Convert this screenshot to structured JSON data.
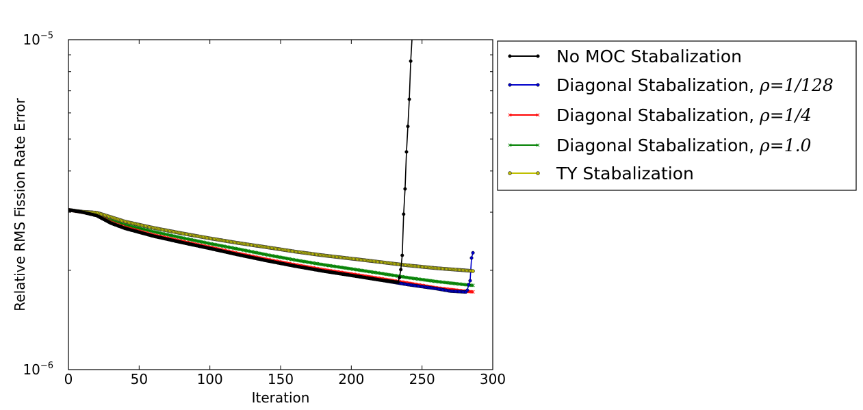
{
  "chart_data": {
    "type": "line",
    "title": "",
    "xlabel": "Iteration",
    "ylabel": "Relative RMS Fission Rate Error",
    "xlim": [
      0,
      300
    ],
    "ylim": [
      1e-06,
      1e-05
    ],
    "y_scale": "log",
    "grid": false,
    "legend_position": "outside-right-top",
    "x_ticks": [
      0,
      50,
      100,
      150,
      200,
      250,
      300
    ],
    "x_tick_labels": [
      "0",
      "50",
      "100",
      "150",
      "200",
      "250",
      "300"
    ],
    "y_tick_labels": [
      {
        "value": 1e-06,
        "base": "10",
        "exp": "−6"
      },
      {
        "value": 1e-05,
        "base": "10",
        "exp": "−5"
      }
    ],
    "series": [
      {
        "name": "No MOC Stabalization",
        "name_text": "No MOC Stabalization",
        "name_math": "",
        "color": "#000000",
        "marker": "dot",
        "x": [
          0,
          10,
          20,
          30,
          40,
          60,
          80,
          100,
          120,
          140,
          160,
          180,
          200,
          220,
          233,
          234,
          235,
          236,
          237,
          238,
          239,
          240,
          241,
          242,
          243
        ],
        "y": [
          3.05e-06,
          3e-06,
          2.93e-06,
          2.78e-06,
          2.68e-06,
          2.54e-06,
          2.43e-06,
          2.33e-06,
          2.23e-06,
          2.14e-06,
          2.06e-06,
          1.99e-06,
          1.93e-06,
          1.87e-06,
          1.84e-06,
          1.9e-06,
          2.01e-06,
          2.22e-06,
          2.96e-06,
          3.53e-06,
          4.57e-06,
          5.46e-06,
          6.6e-06,
          8.61e-06,
          1.02e-05
        ]
      },
      {
        "name": "Diagonal Stabalization, ρ=1/128",
        "name_text": "Diagonal Stabalization, ",
        "name_math": "ρ=1/128",
        "color": "#0000cc",
        "marker": "dot",
        "x": [
          0,
          10,
          20,
          30,
          40,
          60,
          80,
          100,
          120,
          140,
          160,
          180,
          200,
          220,
          240,
          260,
          270,
          280,
          281,
          282,
          283,
          284,
          285,
          286
        ],
        "y": [
          3.05e-06,
          3e-06,
          2.93e-06,
          2.78e-06,
          2.68e-06,
          2.54e-06,
          2.43e-06,
          2.33e-06,
          2.23e-06,
          2.14e-06,
          2.06e-06,
          1.99e-06,
          1.93e-06,
          1.87e-06,
          1.81e-06,
          1.76e-06,
          1.73e-06,
          1.72e-06,
          1.72e-06,
          1.74e-06,
          1.81e-06,
          1.86e-06,
          2.18e-06,
          2.26e-06
        ]
      },
      {
        "name": "Diagonal Stabalization, ρ=1/4",
        "name_text": "Diagonal Stabalization, ",
        "name_math": "ρ=1/4",
        "color": "#ff0000",
        "marker": "x",
        "x": [
          0,
          10,
          20,
          30,
          40,
          60,
          80,
          100,
          120,
          140,
          160,
          180,
          200,
          220,
          240,
          260,
          280,
          286
        ],
        "y": [
          3.05e-06,
          3e-06,
          2.95e-06,
          2.8e-06,
          2.7e-06,
          2.56e-06,
          2.45e-06,
          2.35e-06,
          2.25e-06,
          2.16e-06,
          2.08e-06,
          2.01e-06,
          1.95e-06,
          1.89e-06,
          1.83e-06,
          1.77e-06,
          1.73e-06,
          1.72e-06
        ]
      },
      {
        "name": "Diagonal Stabalization, ρ=1.0",
        "name_text": "Diagonal Stabalization, ",
        "name_math": "ρ=1.0",
        "color": "#008000",
        "marker": "x",
        "x": [
          0,
          10,
          20,
          30,
          40,
          60,
          80,
          100,
          120,
          140,
          160,
          180,
          200,
          220,
          240,
          260,
          280,
          286
        ],
        "y": [
          3.05e-06,
          3e-06,
          2.96e-06,
          2.84e-06,
          2.75e-06,
          2.62e-06,
          2.51e-06,
          2.41e-06,
          2.32e-06,
          2.23e-06,
          2.15e-06,
          2.08e-06,
          2.02e-06,
          1.96e-06,
          1.9e-06,
          1.85e-06,
          1.81e-06,
          1.8e-06
        ]
      },
      {
        "name": "TY Stabalization",
        "name_text": "TY Stabalization",
        "name_math": "",
        "color": "#bfbf00",
        "marker": "circle",
        "x": [
          0,
          10,
          20,
          30,
          40,
          60,
          80,
          100,
          120,
          140,
          160,
          180,
          200,
          220,
          240,
          260,
          280,
          286
        ],
        "y": [
          3.05e-06,
          3.01e-06,
          2.99e-06,
          2.9e-06,
          2.81e-06,
          2.69e-06,
          2.59e-06,
          2.5e-06,
          2.42e-06,
          2.35e-06,
          2.28e-06,
          2.22e-06,
          2.17e-06,
          2.12e-06,
          2.07e-06,
          2.03e-06,
          2e-06,
          1.99e-06
        ]
      }
    ]
  }
}
